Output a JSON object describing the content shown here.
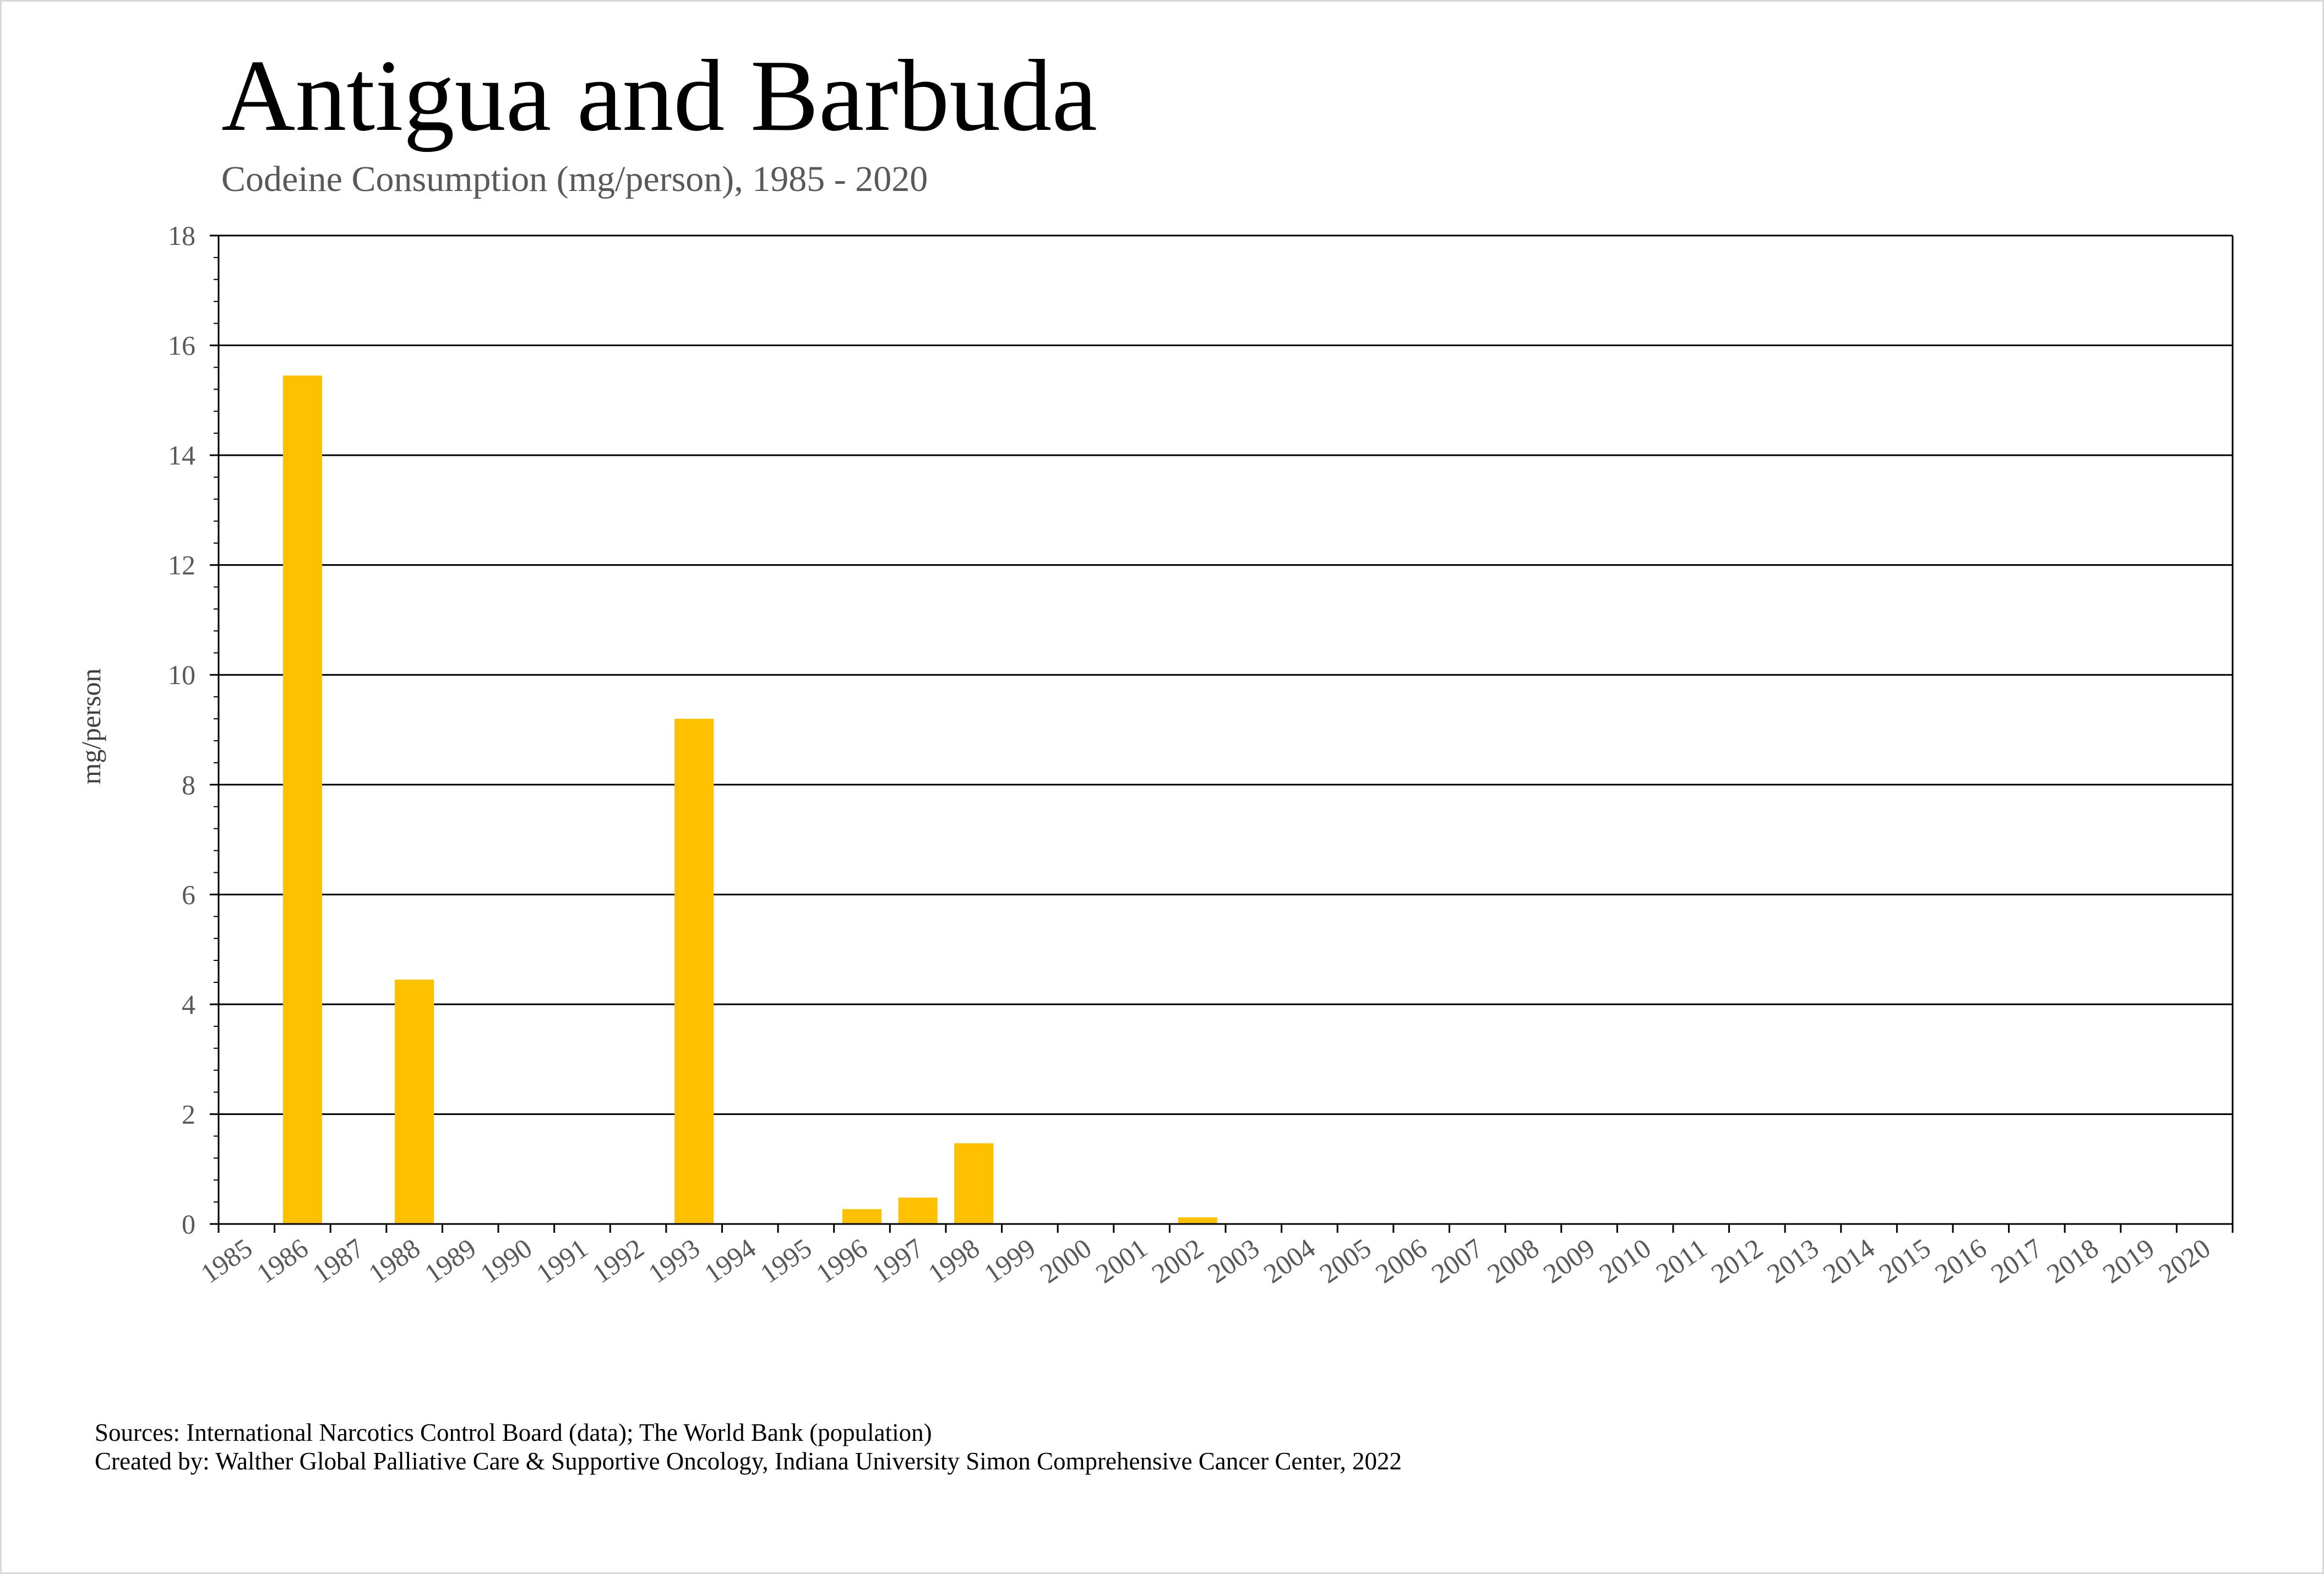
{
  "title": "Antigua and Barbuda",
  "subtitle": "Codeine Consumption (mg/person), 1985 - 2020",
  "footer": {
    "sources": "Sources: International Narcotics Control Board (data); The World Bank (population)",
    "created_by": "Created by: Walther Global Palliative Care & Supportive Oncology, Indiana University Simon Comprehensive Cancer Center, 2022"
  },
  "chart_data": {
    "type": "bar",
    "title": "Antigua and Barbuda",
    "subtitle": "Codeine Consumption (mg/person), 1985 - 2020",
    "xlabel": "",
    "ylabel": "mg/person",
    "ylim": [
      0,
      18
    ],
    "yticks": [
      "0",
      "2",
      "4",
      "6",
      "8",
      "10",
      "12",
      "14",
      "16",
      "18"
    ],
    "grid": "horizontal",
    "legend": "none",
    "bar_color": "#FFC000",
    "categories": [
      "1985",
      "1986",
      "1987",
      "1988",
      "1989",
      "1990",
      "1991",
      "1992",
      "1993",
      "1994",
      "1995",
      "1996",
      "1997",
      "1998",
      "1999",
      "2000",
      "2001",
      "2002",
      "2003",
      "2004",
      "2005",
      "2006",
      "2007",
      "2008",
      "2009",
      "2010",
      "2011",
      "2012",
      "2013",
      "2014",
      "2015",
      "2016",
      "2017",
      "2018",
      "2019",
      "2020"
    ],
    "values": [
      0,
      15.45,
      0,
      4.45,
      0,
      0,
      0,
      0,
      9.2,
      0,
      0,
      0.27,
      0.48,
      1.47,
      0,
      0,
      0,
      0.12,
      0,
      0,
      0,
      0,
      0,
      0,
      0,
      0,
      0,
      0,
      0,
      0,
      0,
      0,
      0,
      0,
      0,
      0
    ]
  }
}
